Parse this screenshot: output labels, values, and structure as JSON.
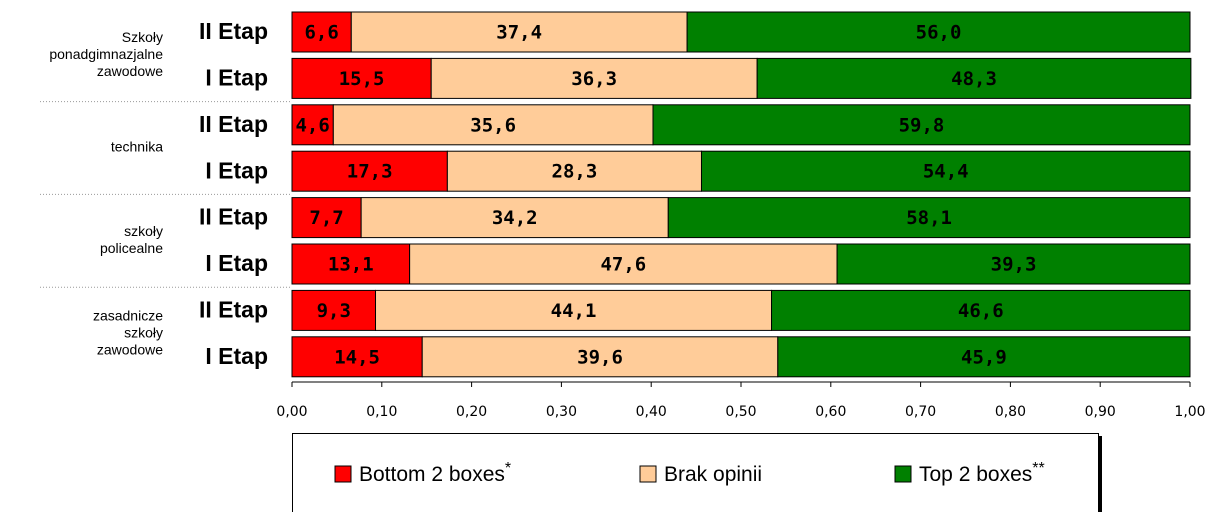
{
  "chart_data": {
    "type": "stacked_barh",
    "groups": [
      [
        "Szkoły",
        "ponadgimnazjalne",
        "zawodowe"
      ],
      [
        "technika"
      ],
      [
        "szkoły",
        "policealne"
      ],
      [
        "zasadnicze",
        "szkoły",
        "zawodowe"
      ]
    ],
    "categories": [
      "II Etap",
      "I Etap",
      "II Etap",
      "I Etap",
      "II Etap",
      "I Etap",
      "II Etap",
      "I Etap"
    ],
    "series": [
      {
        "name": "Bottom 2 boxes",
        "note": "*",
        "color": "#ff0000",
        "values": [
          0.066,
          0.155,
          0.046,
          0.173,
          0.077,
          0.131,
          0.093,
          0.145
        ],
        "value_labels": [
          "6,6",
          "15,5",
          "4,6",
          "17,3",
          "7,7",
          "13,1",
          "9,3",
          "14,5"
        ]
      },
      {
        "name": "Brak opinii",
        "color": "#ffcc99",
        "values": [
          0.374,
          0.363,
          0.356,
          0.283,
          0.342,
          0.476,
          0.441,
          0.396
        ],
        "value_labels": [
          "37,4",
          "36,3",
          "35,6",
          "28,3",
          "34,2",
          "47,6",
          "44,1",
          "39,6"
        ]
      },
      {
        "name": "Top 2 boxes",
        "note": "**",
        "color": "#008000",
        "values": [
          0.56,
          0.483,
          0.598,
          0.544,
          0.581,
          0.393,
          0.466,
          0.459
        ],
        "value_labels": [
          "56,0",
          "48,3",
          "59,8",
          "54,4",
          "58,1",
          "39,3",
          "46,6",
          "45,9"
        ]
      }
    ],
    "xlim": [
      0,
      1
    ],
    "xticks": [
      {
        "value": 0,
        "label": "0,00"
      },
      {
        "value": 0.1,
        "label": "0,10"
      },
      {
        "value": 0.2,
        "label": "0,20"
      },
      {
        "value": 0.3,
        "label": "0,30"
      },
      {
        "value": 0.4,
        "label": "0,40"
      },
      {
        "value": 0.5,
        "label": "0,50"
      },
      {
        "value": 0.6,
        "label": "0,60"
      },
      {
        "value": 0.7,
        "label": "0,70"
      },
      {
        "value": 0.8,
        "label": "0,80"
      },
      {
        "value": 0.9,
        "label": "0,90"
      },
      {
        "value": 1,
        "label": "1,00"
      }
    ]
  }
}
